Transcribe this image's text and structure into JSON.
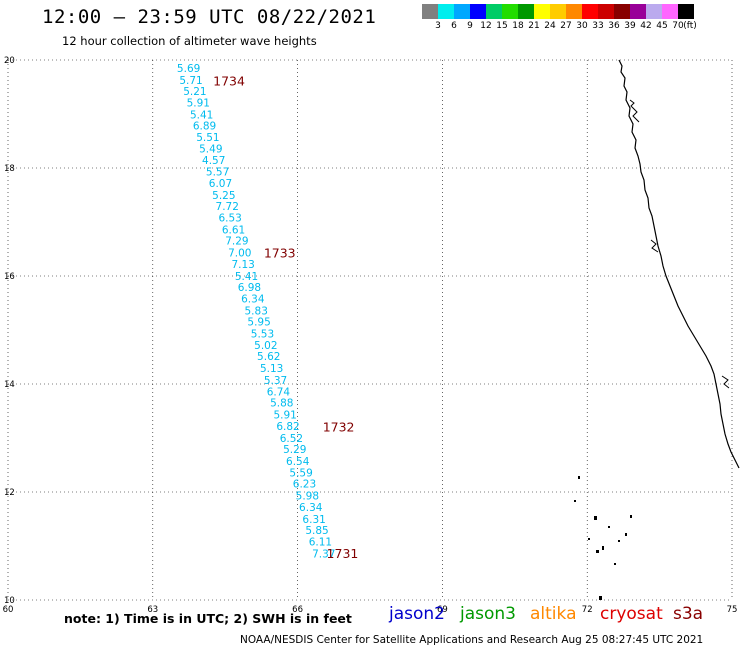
{
  "header": {
    "title": "12:00 – 23:59 UTC 08/22/2021",
    "subtitle": "12 hour collection of altimeter wave heights"
  },
  "color_scale": {
    "colors": [
      "#808080",
      "#00eeee",
      "#00a8ff",
      "#0000ff",
      "#00cc66",
      "#22dd00",
      "#009900",
      "#ffff00",
      "#ffcc00",
      "#ff8800",
      "#ff0000",
      "#cc0000",
      "#880000",
      "#990099",
      "#bbaaee",
      "#ff66ff",
      "#000000"
    ],
    "labels": [
      "3",
      "6",
      "9",
      "12",
      "15",
      "18",
      "21",
      "24",
      "27",
      "30",
      "33",
      "36",
      "39",
      "42",
      "45",
      "70",
      "(ft)"
    ]
  },
  "chart_data": {
    "type": "scatter",
    "title": "12:00 – 23:59 UTC 08/22/2021",
    "subtitle": "12 hour collection of altimeter wave heights",
    "xlim": [
      60,
      75
    ],
    "ylim": [
      10,
      20
    ],
    "x_ticks": [
      "60",
      "63",
      "66",
      "69",
      "72",
      "75"
    ],
    "y_ticks": [
      "20",
      "18",
      "16",
      "14",
      "12",
      "10"
    ],
    "grid": true,
    "track_color": "#00bbee",
    "time_label_color": "#800000",
    "points": [
      {
        "lon": 63.5,
        "lat": 19.78,
        "swh": "5.69"
      },
      {
        "lon": 63.55,
        "lat": 19.56,
        "swh": "5.71"
      },
      {
        "lon": 63.63,
        "lat": 19.35,
        "swh": "5.21"
      },
      {
        "lon": 63.7,
        "lat": 19.14,
        "swh": "5.91"
      },
      {
        "lon": 63.77,
        "lat": 18.92,
        "swh": "5.41"
      },
      {
        "lon": 63.83,
        "lat": 18.71,
        "swh": "6.89"
      },
      {
        "lon": 63.9,
        "lat": 18.5,
        "swh": "5.51"
      },
      {
        "lon": 63.96,
        "lat": 18.29,
        "swh": "5.49"
      },
      {
        "lon": 64.02,
        "lat": 18.07,
        "swh": "4.57"
      },
      {
        "lon": 64.1,
        "lat": 17.86,
        "swh": "5.57"
      },
      {
        "lon": 64.16,
        "lat": 17.65,
        "swh": "6.07"
      },
      {
        "lon": 64.23,
        "lat": 17.43,
        "swh": "5.25"
      },
      {
        "lon": 64.3,
        "lat": 17.22,
        "swh": "7.72"
      },
      {
        "lon": 64.36,
        "lat": 17.01,
        "swh": "6.53"
      },
      {
        "lon": 64.43,
        "lat": 16.79,
        "swh": "6.61"
      },
      {
        "lon": 64.5,
        "lat": 16.58,
        "swh": "7.29"
      },
      {
        "lon": 64.56,
        "lat": 16.36,
        "swh": "7.00"
      },
      {
        "lon": 64.63,
        "lat": 16.15,
        "swh": "7.13"
      },
      {
        "lon": 64.7,
        "lat": 15.93,
        "swh": "5.41"
      },
      {
        "lon": 64.76,
        "lat": 15.72,
        "swh": "6.98"
      },
      {
        "lon": 64.83,
        "lat": 15.51,
        "swh": "6.34"
      },
      {
        "lon": 64.9,
        "lat": 15.29,
        "swh": "5.83"
      },
      {
        "lon": 64.96,
        "lat": 15.08,
        "swh": "5.95"
      },
      {
        "lon": 65.03,
        "lat": 14.86,
        "swh": "5.53"
      },
      {
        "lon": 65.1,
        "lat": 14.65,
        "swh": "5.02"
      },
      {
        "lon": 65.16,
        "lat": 14.44,
        "swh": "5.62"
      },
      {
        "lon": 65.22,
        "lat": 14.22,
        "swh": "5.13"
      },
      {
        "lon": 65.3,
        "lat": 14.0,
        "swh": "5.37"
      },
      {
        "lon": 65.36,
        "lat": 13.79,
        "swh": "6.74"
      },
      {
        "lon": 65.43,
        "lat": 13.58,
        "swh": "5.88"
      },
      {
        "lon": 65.5,
        "lat": 13.36,
        "swh": "5.91"
      },
      {
        "lon": 65.56,
        "lat": 13.15,
        "swh": "6.82"
      },
      {
        "lon": 65.63,
        "lat": 12.93,
        "swh": "6.52"
      },
      {
        "lon": 65.7,
        "lat": 12.72,
        "swh": "5.29"
      },
      {
        "lon": 65.76,
        "lat": 12.5,
        "swh": "6.54"
      },
      {
        "lon": 65.83,
        "lat": 12.29,
        "swh": "5.59"
      },
      {
        "lon": 65.9,
        "lat": 12.08,
        "swh": "6.23"
      },
      {
        "lon": 65.96,
        "lat": 11.86,
        "swh": "5.98"
      },
      {
        "lon": 66.03,
        "lat": 11.65,
        "swh": "6.34"
      },
      {
        "lon": 66.1,
        "lat": 11.43,
        "swh": "6.31"
      },
      {
        "lon": 66.16,
        "lat": 11.22,
        "swh": "5.85"
      },
      {
        "lon": 66.23,
        "lat": 11.01,
        "swh": "6.11"
      },
      {
        "lon": 66.3,
        "lat": 10.79,
        "swh": "7.37"
      }
    ],
    "time_labels": [
      {
        "lon": 64.25,
        "lat": 19.53,
        "text": "1734"
      },
      {
        "lon": 65.3,
        "lat": 16.34,
        "text": "1733"
      },
      {
        "lon": 66.52,
        "lat": 13.12,
        "text": "1732"
      },
      {
        "lon": 66.6,
        "lat": 10.78,
        "text": "1731"
      }
    ]
  },
  "footer": {
    "note": "note:  1) Time is in UTC;  2) SWH is in feet",
    "satellites": [
      {
        "name": "jason2",
        "color": "#0000cc"
      },
      {
        "name": "jason3",
        "color": "#009900"
      },
      {
        "name": "altika",
        "color": "#ff8800"
      },
      {
        "name": "cryosat",
        "color": "#dd0000"
      },
      {
        "name": "s3a",
        "color": "#880000"
      }
    ],
    "credit": "NOAA/NESDIS Center for Satellite Applications and Research     Aug 25 08:27:45 UTC 2021"
  }
}
